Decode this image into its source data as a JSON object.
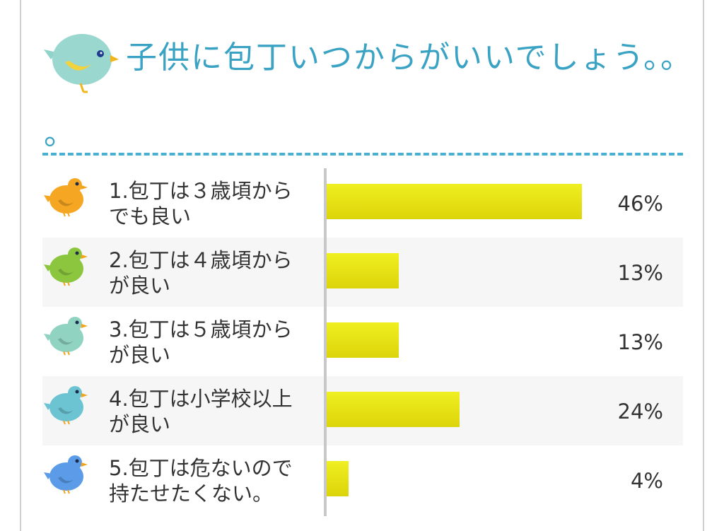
{
  "colors": {
    "title": "#3aa3c4",
    "divider": "#49b0d2",
    "bar": "#e6e012",
    "text": "#333333"
  },
  "header": {
    "icon": "bird-icon",
    "title_line1": "子供に包丁いつからがいいでしょう。。",
    "title_line2": "。"
  },
  "chart_data": {
    "type": "bar",
    "orientation": "horizontal",
    "unit": "%",
    "categories": [
      "1.包丁は３歳頃からでも良い",
      "2.包丁は４歳頃からが良い",
      "3.包丁は５歳頃からが良い",
      "4.包丁は小学校以上が良い",
      "5.包丁は危ないので持たせたくない。"
    ],
    "values": [
      46,
      13,
      13,
      24,
      4
    ],
    "value_labels": [
      "46%",
      "13%",
      "13%",
      "24%",
      "4%"
    ],
    "xlim": [
      0,
      50
    ],
    "grid": false,
    "legend": "none"
  },
  "rows": [
    {
      "line1": "1.包丁は３歳頃から",
      "line2": "でも良い",
      "bird_color": "#f5a623",
      "icon": "orange-bird-icon"
    },
    {
      "line1": "2.包丁は４歳頃から",
      "line2": "が良い",
      "bird_color": "#8cc63f",
      "icon": "green-bird-icon"
    },
    {
      "line1": "3.包丁は５歳頃から",
      "line2": "が良い",
      "bird_color": "#8fd3c0",
      "icon": "mint-bird-icon"
    },
    {
      "line1": "4.包丁は小学校以上",
      "line2": "が良い",
      "bird_color": "#6cc3d2",
      "icon": "teal-bird-icon"
    },
    {
      "line1": "5.包丁は危ないので",
      "line2": "持たせたくない。",
      "bird_color": "#5b9be8",
      "icon": "blue-bird-icon"
    }
  ]
}
